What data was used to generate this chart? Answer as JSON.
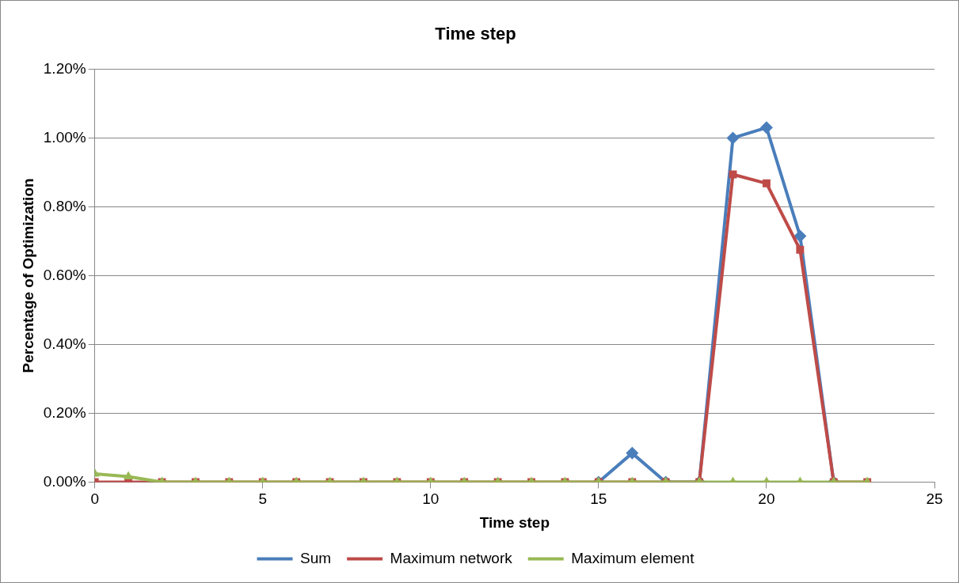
{
  "chart_data": {
    "type": "line",
    "title": "Time step",
    "xlabel": "Time step",
    "ylabel": "Percentage of Optimization",
    "x": [
      0,
      1,
      2,
      3,
      4,
      5,
      6,
      7,
      8,
      9,
      10,
      11,
      12,
      13,
      14,
      15,
      16,
      17,
      18,
      19,
      20,
      21,
      22,
      23
    ],
    "series": [
      {
        "name": "Sum",
        "color": "#4a7ebb",
        "marker": "diamond",
        "values": [
          null,
          null,
          null,
          null,
          null,
          null,
          null,
          null,
          null,
          null,
          null,
          null,
          null,
          null,
          null,
          0,
          0.084,
          0,
          0,
          1.0,
          1.03,
          0.715,
          0,
          null
        ]
      },
      {
        "name": "Maximum network",
        "color": "#be4b48",
        "marker": "square",
        "values": [
          0,
          0,
          0,
          0,
          0,
          0,
          0,
          0,
          0,
          0,
          0,
          0,
          0,
          0,
          0,
          0,
          0,
          0,
          0,
          0.894,
          0.868,
          0.675,
          0,
          0
        ]
      },
      {
        "name": "Maximum element",
        "color": "#98b954",
        "marker": "triangle",
        "values": [
          0.024,
          0.016,
          0,
          0,
          0,
          0,
          0,
          0,
          0,
          0,
          0,
          0,
          0,
          0,
          0,
          0,
          0,
          0,
          0,
          0,
          0,
          0,
          0,
          0
        ]
      }
    ],
    "xlim": [
      0,
      25
    ],
    "xticks": [
      0,
      5,
      10,
      15,
      20,
      25
    ],
    "ylim": [
      0,
      1.2
    ],
    "yticks": [
      {
        "value": 0,
        "label": "0.00%"
      },
      {
        "value": 0.2,
        "label": "0.20%"
      },
      {
        "value": 0.4,
        "label": "0.40%"
      },
      {
        "value": 0.6,
        "label": "0.60%"
      },
      {
        "value": 0.8,
        "label": "0.80%"
      },
      {
        "value": 1.0,
        "label": "1.00%"
      },
      {
        "value": 1.2,
        "label": "1.20%"
      }
    ],
    "grid": "y",
    "legend": "bottom",
    "line_style": "solid"
  }
}
